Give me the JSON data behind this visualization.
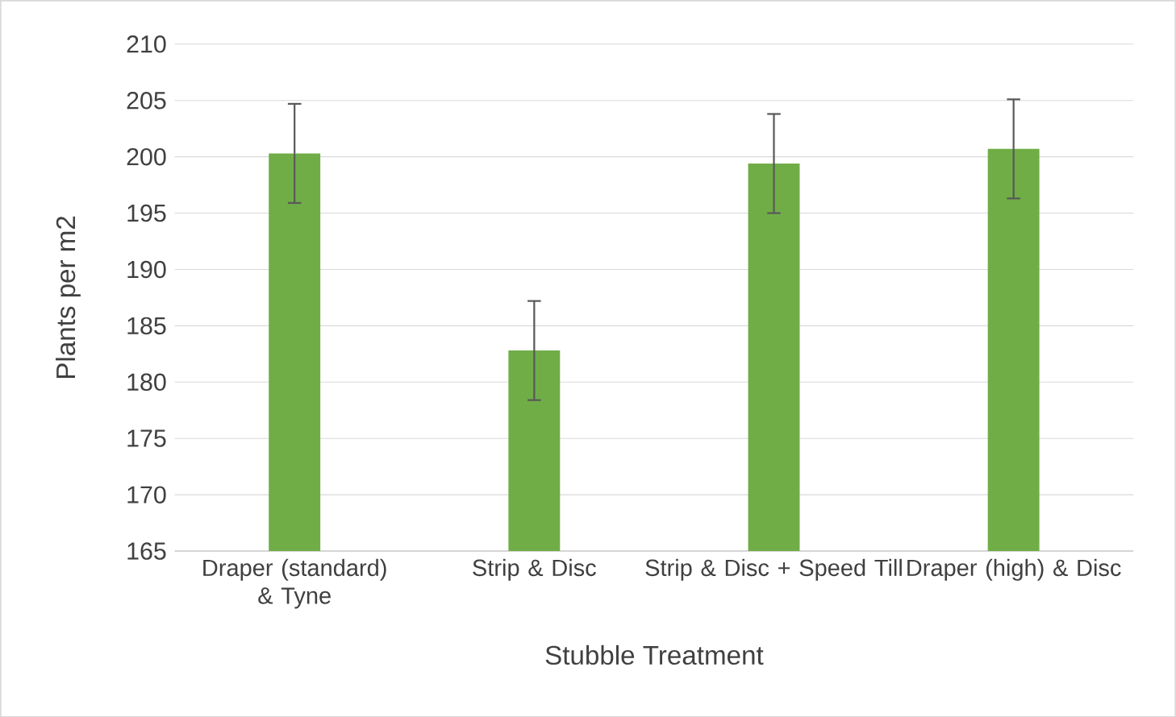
{
  "chart_data": {
    "type": "bar",
    "xlabel": "Stubble Treatment",
    "ylabel": "Plants per m2",
    "categories": [
      "Draper (standard) & Tyne",
      "Strip & Disc",
      "Strip & Disc + Speed Till",
      "Draper (high) & Disc"
    ],
    "values": [
      200.3,
      182.8,
      199.4,
      200.7
    ],
    "errors": [
      4.4,
      4.4,
      4.4,
      4.4
    ],
    "color": "#70ad47",
    "ylim": [
      165,
      210
    ],
    "yticks": [
      165,
      170,
      175,
      180,
      185,
      190,
      195,
      200,
      205,
      210
    ],
    "grid": "y"
  }
}
